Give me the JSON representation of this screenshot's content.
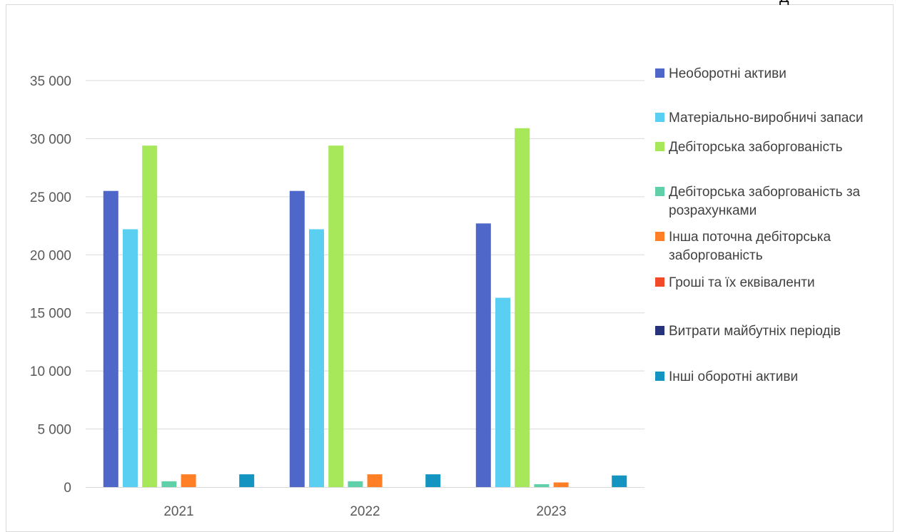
{
  "corner_text": "Д",
  "chart_data": {
    "type": "bar",
    "title": "",
    "xlabel": "",
    "ylabel": "",
    "categories": [
      "2021",
      "2022",
      "2023"
    ],
    "ylim": [
      0,
      35000
    ],
    "yticks": [
      0,
      5000,
      10000,
      15000,
      20000,
      25000,
      30000,
      35000
    ],
    "ytick_labels": [
      "0",
      "5 000",
      "10 000",
      "15 000",
      "20 000",
      "25 000",
      "30 000",
      "35 000"
    ],
    "grid": true,
    "legend_position": "right",
    "series": [
      {
        "name": "Необоротні активи",
        "color": "#4f67c9",
        "values": [
          25500,
          25500,
          22700
        ]
      },
      {
        "name": "Матеріально-виробничі запаси",
        "color": "#5bcff2",
        "values": [
          22200,
          22200,
          16300
        ]
      },
      {
        "name": "Дебіторська заборгованість",
        "color": "#a6e85a",
        "values": [
          29400,
          29400,
          30900
        ]
      },
      {
        "name": "Дебіторська заборгованість за розрахунками",
        "color": "#5fd0a8",
        "values": [
          500,
          500,
          250
        ]
      },
      {
        "name": "Інша поточна дебіторська заборгованість",
        "color": "#ff7f27",
        "values": [
          1100,
          1100,
          400
        ]
      },
      {
        "name": "Гроші та їх еквіваленти",
        "color": "#f04a28",
        "values": [
          0,
          0,
          0
        ]
      },
      {
        "name": "Витрати майбутніх періодів",
        "color": "#26337a",
        "values": [
          0,
          0,
          0
        ]
      },
      {
        "name": "Інші оборотні активи",
        "color": "#1494c0",
        "values": [
          1100,
          1100,
          1000
        ]
      }
    ]
  }
}
